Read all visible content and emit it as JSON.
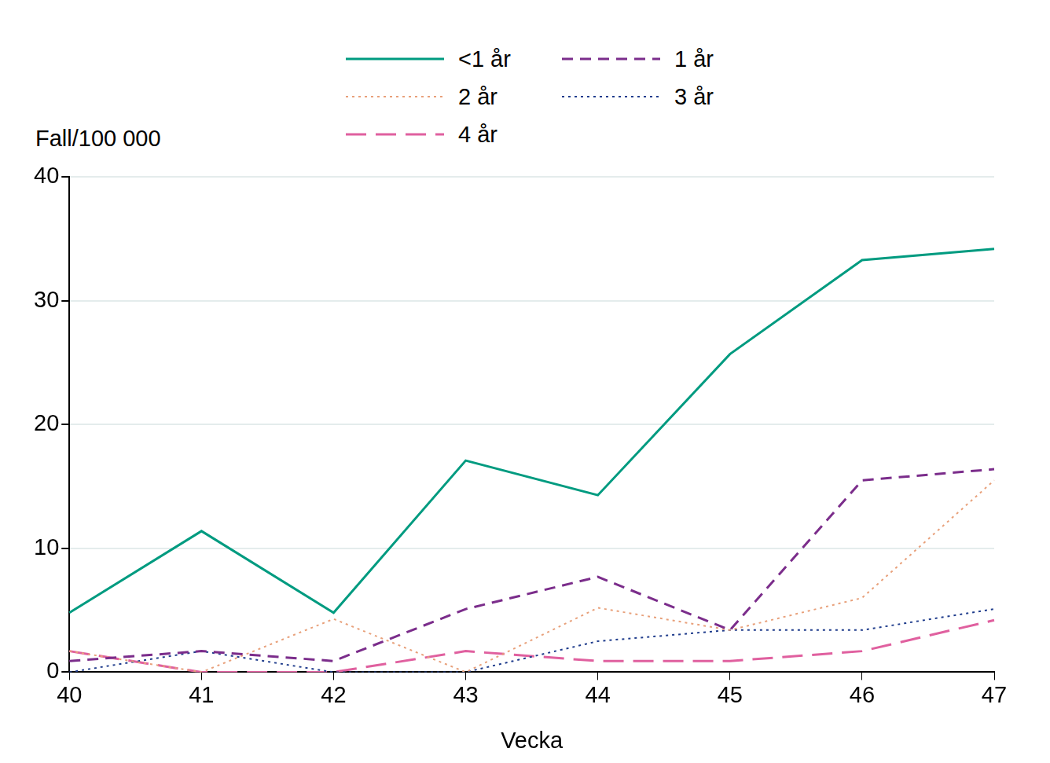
{
  "chart_data": {
    "type": "line",
    "y_label": "Fall/100 000",
    "x_label": "Vecka",
    "categories": [
      "40",
      "41",
      "42",
      "43",
      "44",
      "45",
      "46",
      "47"
    ],
    "series": [
      {
        "name": "<1 år",
        "color": "#009b80",
        "line_style": "solid",
        "values": [
          4.8,
          11.4,
          4.8,
          17.1,
          14.3,
          25.7,
          33.3,
          34.2
        ]
      },
      {
        "name": "1 år",
        "color": "#7b2d8b",
        "line_style": "dashed",
        "values": [
          0.9,
          1.7,
          0.9,
          5.1,
          7.7,
          3.4,
          15.5,
          16.4
        ]
      },
      {
        "name": "2 år",
        "color": "#e8a07a",
        "line_style": "dotted",
        "values": [
          1.7,
          0,
          4.3,
          0,
          5.2,
          3.4,
          6.0,
          15.5
        ]
      },
      {
        "name": "3 år",
        "color": "#1f3c8c",
        "line_style": "dotted",
        "values": [
          0,
          1.7,
          0,
          0,
          2.5,
          3.4,
          3.4,
          5.1
        ]
      },
      {
        "name": "4 år",
        "color": "#e0609f",
        "line_style": "longdash",
        "values": [
          1.7,
          0,
          0,
          1.7,
          0.9,
          0.9,
          1.7,
          4.2
        ]
      }
    ],
    "ylim": [
      0,
      40
    ],
    "yticks": [
      0,
      10,
      20,
      30,
      40
    ],
    "grid": true,
    "legend": "top"
  }
}
